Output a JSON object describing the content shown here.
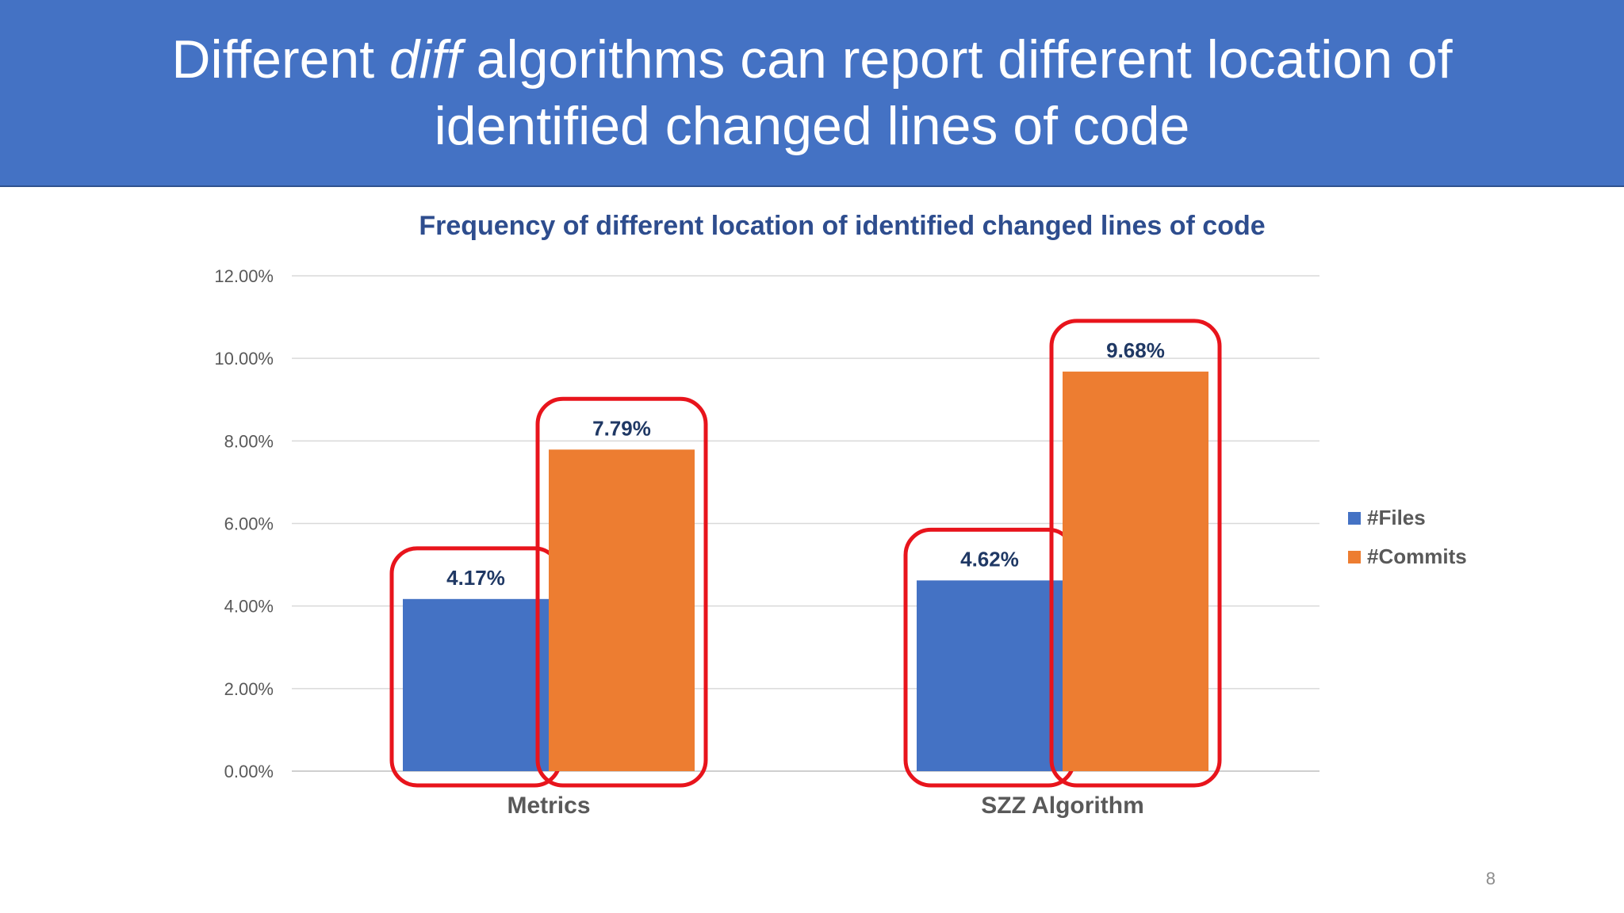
{
  "slide": {
    "title_part1": "Different ",
    "title_italic": "diff",
    "title_part2": " algorithms can report different location of identified changed lines of code",
    "page_number": "8"
  },
  "colors": {
    "banner": "#4472c4",
    "files": "#4472c4",
    "commits": "#ed7d31",
    "highlight": "#e8141c",
    "chart_title": "#2e4d8e",
    "data_label": "#1f3864"
  },
  "chart_data": {
    "type": "bar",
    "title": "Frequency of different location of identified changed lines of code",
    "categories": [
      "Metrics",
      "SZZ Algorithm"
    ],
    "series": [
      {
        "name": "#Files",
        "values": [
          4.17,
          4.62
        ],
        "labels": [
          "4.17%",
          "4.62%"
        ]
      },
      {
        "name": "#Commits",
        "values": [
          7.79,
          9.68
        ],
        "labels": [
          "7.79%",
          "9.68%"
        ]
      }
    ],
    "ylim": [
      0,
      12
    ],
    "yticks": [
      "0.00%",
      "2.00%",
      "4.00%",
      "6.00%",
      "8.00%",
      "10.00%",
      "12.00%"
    ],
    "grid": true,
    "legend_position": "right",
    "annotations": "red rounded boxes highlight each bar"
  }
}
